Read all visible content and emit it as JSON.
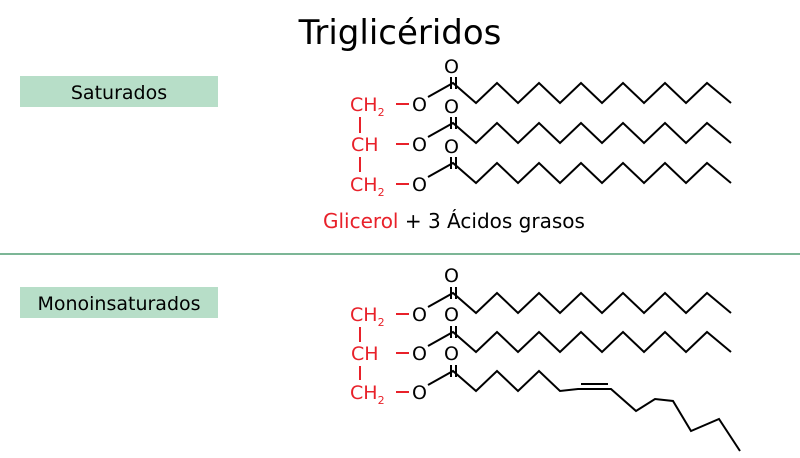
{
  "title": "Triglicéridos",
  "sections": [
    {
      "label": "Saturados"
    },
    {
      "label": "Monoinsaturados"
    }
  ],
  "glycerol": {
    "ch2": "CH",
    "ch2_sub": "2",
    "ch": "CH",
    "oxygen": "O",
    "dash": "–"
  },
  "carbonyl_oxygen": "O",
  "legend": {
    "glycerol": "Glicerol",
    "rest": " + 3 Ácidos grasos"
  },
  "colors": {
    "glycerol": "#e8212a",
    "label_bg": "#b7dec8",
    "divider": "#2e8b57"
  }
}
